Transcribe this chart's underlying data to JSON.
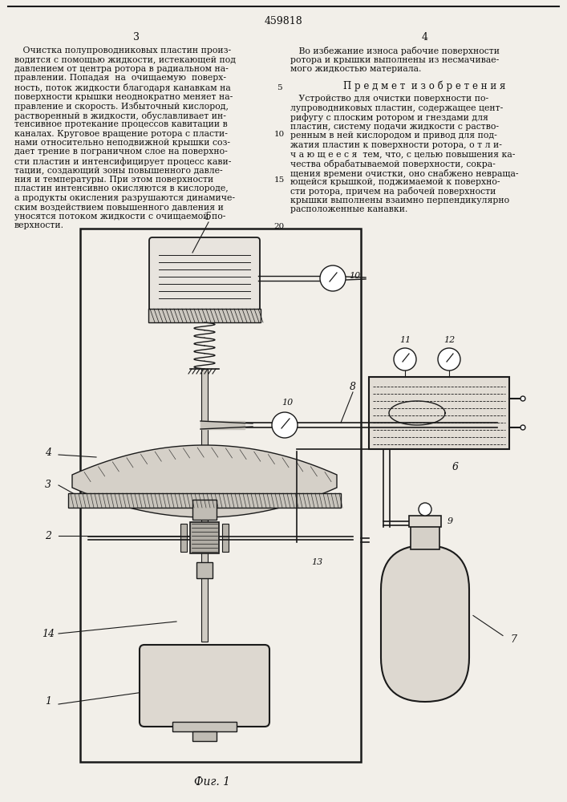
{
  "page_number_center": "459818",
  "col_left_num": "3",
  "col_right_num": "4",
  "col_left_lines": [
    "   Очистка полупроводниковых пластин произ-",
    "водится с помощью жидкости, истекающей под",
    "давлением от центра ротора в радиальном на-",
    "правлении. Попадая  на  очищаемую  поверх-",
    "ность, поток жидкости благодаря канавкам на",
    "поверхности крышки неоднократно меняет на-",
    "правление и скорость. Избыточный кислород,",
    "растворенный в жидкости, обуславливает ин-",
    "тенсивное протекание процессов кавитации в",
    "каналах. Круговое вращение ротора с пласти-",
    "нами относительно неподвижной крышки соз-",
    "дает трение в пограничном слое на поверхно-",
    "сти пластин и интенсифицирует процесс кави-",
    "тации, создающий зоны повышенного давле-",
    "ния и температуры. При этом поверхности",
    "пластин интенсивно окисляются в кислороде,",
    "а продукты окисления разрушаются динамиче-",
    "ским воздействием повышенного давления и",
    "уносятся потоком жидкости с очищаемой по-",
    "верхности."
  ],
  "line_numbers": [
    "5",
    "10",
    "15",
    "20"
  ],
  "line_number_rows": [
    4,
    9,
    14,
    19
  ],
  "col_right_top_lines": [
    "   Во избежание износа рабочие поверхности",
    "ротора и крышки выполнены из несмачивае-",
    "мого жидкостью материала."
  ],
  "section_title": "П р е д м е т  и з о б р е т е н и я",
  "col_right_bottom_lines": [
    "   Устройство для очистки поверхности по-",
    "лупроводниковых пластин, содержащее цент-",
    "рифугу с плоским ротором и гнездами для",
    "пластин, систему подачи жидкости с раство-",
    "ренным в ней кислородом и привод для под-",
    "жатия пластин к поверхности ротора, о т л и-",
    "ч а ю щ е е с я  тем, что, с целью повышения ка-",
    "чества обрабатываемой поверхности, сокра-",
    "щения времени очистки, оно снабжено невраща-",
    "ющейся крышкой, поджимаемой к поверхно-",
    "сти ротора, причем на рабочей поверхности",
    "крышки выполнены взаимно перпендикулярно",
    "расположенные канавки."
  ],
  "fig_label": "Фиг. 1",
  "bg_color": "#f2efe9",
  "text_color": "#111111",
  "draw_color": "#1a1a1a"
}
